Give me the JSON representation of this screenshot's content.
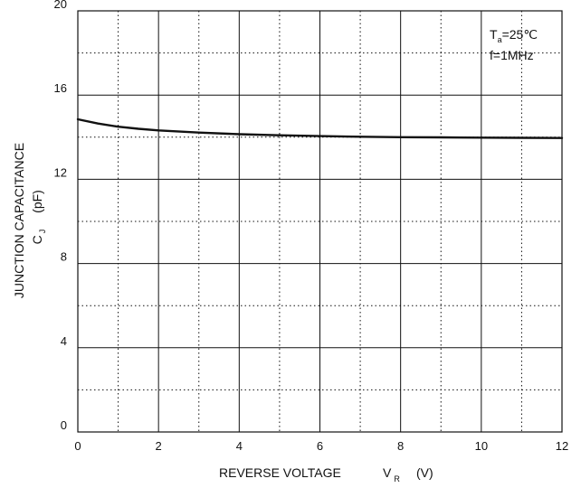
{
  "chart_data": {
    "type": "line",
    "title": "",
    "xlabel": "REVERSE VOLTAGE",
    "xlabel_symbol": "V",
    "xlabel_symbol_sub": "R",
    "xlabel_unit": "(V)",
    "ylabel_line1": "JUNCTION CAPACITANCE",
    "ylabel_symbol": "C",
    "ylabel_symbol_sub": "J",
    "ylabel_unit": "(pF)",
    "xlim": [
      0,
      12
    ],
    "ylim": [
      0,
      20
    ],
    "x_ticks": [
      "0",
      "2",
      "4",
      "6",
      "8",
      "10",
      "12"
    ],
    "y_ticks": [
      "0",
      "4",
      "8",
      "12",
      "16",
      "20"
    ],
    "grid": true,
    "annotations": {
      "temp_symbol": "T",
      "temp_sub": "a",
      "temp_value": "=25℃",
      "freq": "f=1MHz"
    },
    "series": [
      {
        "x": [
          0,
          0.5,
          1,
          1.5,
          2,
          3,
          4,
          5,
          6,
          7,
          8,
          9,
          10,
          11,
          12
        ],
        "y": [
          14.85,
          14.65,
          14.5,
          14.4,
          14.32,
          14.22,
          14.14,
          14.09,
          14.05,
          14.02,
          14.0,
          13.99,
          13.98,
          13.97,
          13.96
        ]
      }
    ],
    "colors": {
      "line": "#111111",
      "grid": "#111111",
      "background": "#ffffff"
    }
  }
}
